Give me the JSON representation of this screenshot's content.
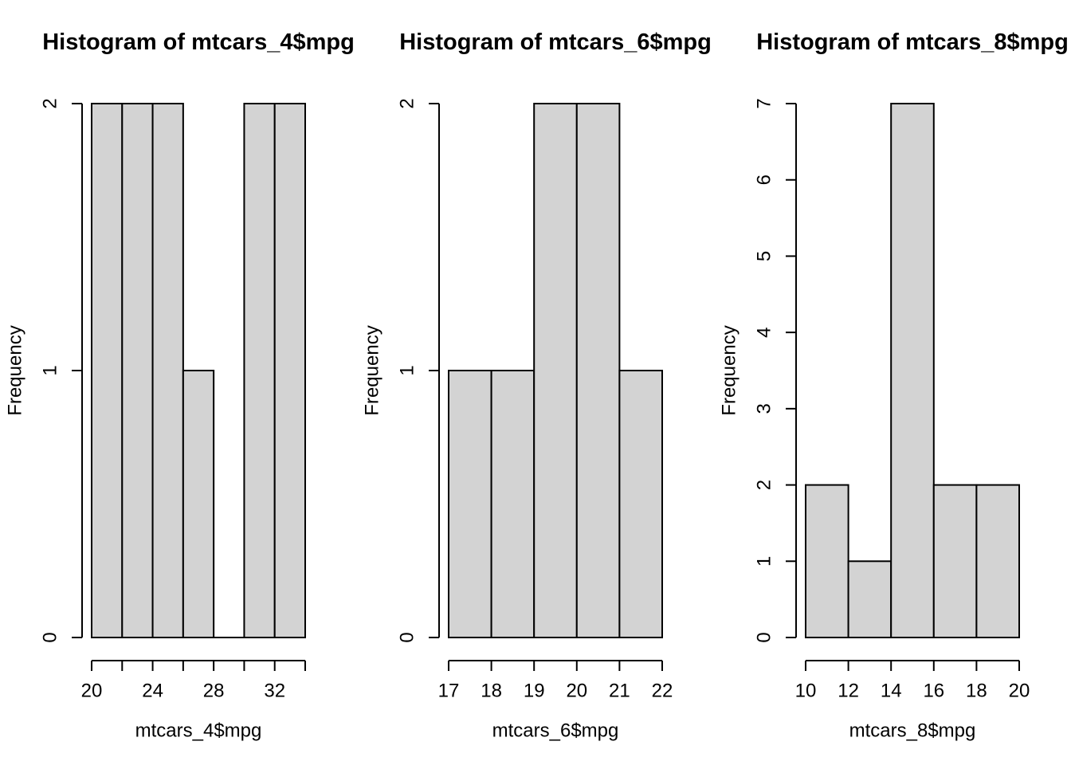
{
  "chart_data": [
    {
      "type": "bar",
      "subtype": "histogram",
      "title": "Histogram of mtcars_4$mpg",
      "xlabel": "mtcars_4$mpg",
      "ylabel": "Frequency",
      "bin_breaks": [
        20,
        22,
        24,
        26,
        28,
        30,
        32,
        34
      ],
      "counts": [
        2,
        2,
        2,
        1,
        0,
        2,
        2
      ],
      "xlim": [
        20,
        34
      ],
      "ylim": [
        0,
        2
      ],
      "x_ticks": [
        20,
        22,
        24,
        26,
        28,
        30,
        32,
        34
      ],
      "x_tick_labels": [
        "20",
        "",
        "24",
        "",
        "28",
        "",
        "32",
        ""
      ],
      "y_ticks": [
        0,
        1,
        2
      ],
      "y_tick_labels": [
        "0",
        "1",
        "2"
      ],
      "bar_fill": "#d3d3d3",
      "bar_stroke": "#000000",
      "grid": false,
      "legend": null
    },
    {
      "type": "bar",
      "subtype": "histogram",
      "title": "Histogram of mtcars_6$mpg",
      "xlabel": "mtcars_6$mpg",
      "ylabel": "Frequency",
      "bin_breaks": [
        17,
        18,
        19,
        20,
        21,
        22
      ],
      "counts": [
        1,
        1,
        2,
        2,
        1
      ],
      "xlim": [
        17,
        22
      ],
      "ylim": [
        0,
        2
      ],
      "x_ticks": [
        17,
        18,
        19,
        20,
        21,
        22
      ],
      "x_tick_labels": [
        "17",
        "18",
        "19",
        "20",
        "21",
        "22"
      ],
      "y_ticks": [
        0,
        1,
        2
      ],
      "y_tick_labels": [
        "0",
        "1",
        "2"
      ],
      "bar_fill": "#d3d3d3",
      "bar_stroke": "#000000",
      "grid": false,
      "legend": null
    },
    {
      "type": "bar",
      "subtype": "histogram",
      "title": "Histogram of mtcars_8$mpg",
      "xlabel": "mtcars_8$mpg",
      "ylabel": "Frequency",
      "bin_breaks": [
        10,
        12,
        14,
        16,
        18,
        20
      ],
      "counts": [
        2,
        1,
        7,
        2,
        2
      ],
      "xlim": [
        10,
        20
      ],
      "ylim": [
        0,
        7
      ],
      "x_ticks": [
        10,
        12,
        14,
        16,
        18,
        20
      ],
      "x_tick_labels": [
        "10",
        "12",
        "14",
        "16",
        "18",
        "20"
      ],
      "y_ticks": [
        0,
        1,
        2,
        3,
        4,
        5,
        6,
        7
      ],
      "y_tick_labels": [
        "0",
        "1",
        "2",
        "3",
        "4",
        "5",
        "6",
        "7"
      ],
      "bar_fill": "#d3d3d3",
      "bar_stroke": "#000000",
      "grid": false,
      "legend": null
    }
  ]
}
